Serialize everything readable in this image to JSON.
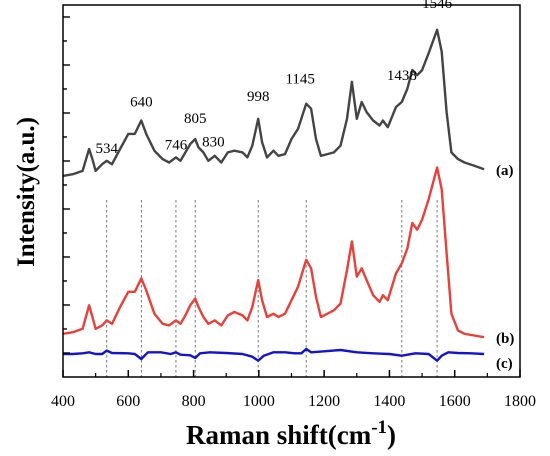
{
  "chart_data": {
    "type": "line",
    "xlabel": "Raman shift(cm",
    "xlabel_sup": "-1",
    "xlabel_close": ")",
    "ylabel": "Intensity(a.u.)",
    "xlim": [
      400,
      1800
    ],
    "x_ticks": [
      "400",
      "600",
      "800",
      "1000",
      "1200",
      "1400",
      "1600",
      "1800"
    ],
    "peak_labels": [
      "534",
      "640",
      "746",
      "805",
      "830",
      "998",
      "1145",
      "1438",
      "1546"
    ],
    "reference_lines": [
      534,
      640,
      746,
      805,
      998,
      1145,
      1438,
      1546
    ],
    "colors": {
      "a": "#444444",
      "b": "#e8403a",
      "c": "#1414c8",
      "ref": "#555555"
    },
    "series": [
      {
        "name": "(a)",
        "color": "#444444",
        "points": [
          [
            400,
            0.53
          ],
          [
            430,
            0.535
          ],
          [
            460,
            0.545
          ],
          [
            480,
            0.61
          ],
          [
            490,
            0.58
          ],
          [
            500,
            0.545
          ],
          [
            520,
            0.565
          ],
          [
            534,
            0.575
          ],
          [
            550,
            0.565
          ],
          [
            575,
            0.61
          ],
          [
            600,
            0.655
          ],
          [
            620,
            0.655
          ],
          [
            640,
            0.695
          ],
          [
            655,
            0.655
          ],
          [
            680,
            0.605
          ],
          [
            705,
            0.58
          ],
          [
            725,
            0.57
          ],
          [
            746,
            0.585
          ],
          [
            760,
            0.575
          ],
          [
            775,
            0.6
          ],
          [
            790,
            0.625
          ],
          [
            805,
            0.64
          ],
          [
            815,
            0.615
          ],
          [
            830,
            0.6
          ],
          [
            845,
            0.575
          ],
          [
            865,
            0.59
          ],
          [
            885,
            0.57
          ],
          [
            905,
            0.6
          ],
          [
            925,
            0.605
          ],
          [
            950,
            0.6
          ],
          [
            965,
            0.585
          ],
          [
            980,
            0.62
          ],
          [
            998,
            0.7
          ],
          [
            1010,
            0.63
          ],
          [
            1025,
            0.585
          ],
          [
            1045,
            0.605
          ],
          [
            1060,
            0.59
          ],
          [
            1080,
            0.595
          ],
          [
            1100,
            0.64
          ],
          [
            1120,
            0.67
          ],
          [
            1145,
            0.745
          ],
          [
            1160,
            0.73
          ],
          [
            1175,
            0.64
          ],
          [
            1190,
            0.59
          ],
          [
            1210,
            0.595
          ],
          [
            1230,
            0.6
          ],
          [
            1250,
            0.62
          ],
          [
            1270,
            0.7
          ],
          [
            1285,
            0.81
          ],
          [
            1300,
            0.7
          ],
          [
            1315,
            0.75
          ],
          [
            1330,
            0.72
          ],
          [
            1350,
            0.695
          ],
          [
            1370,
            0.68
          ],
          [
            1380,
            0.695
          ],
          [
            1395,
            0.675
          ],
          [
            1420,
            0.735
          ],
          [
            1438,
            0.75
          ],
          [
            1455,
            0.79
          ],
          [
            1470,
            0.845
          ],
          [
            1485,
            0.83
          ],
          [
            1500,
            0.845
          ],
          [
            1520,
            0.895
          ],
          [
            1546,
            0.965
          ],
          [
            1560,
            0.9
          ],
          [
            1575,
            0.72
          ],
          [
            1590,
            0.6
          ],
          [
            1610,
            0.58
          ],
          [
            1630,
            0.57
          ],
          [
            1660,
            0.56
          ],
          [
            1690,
            0.55
          ]
        ]
      },
      {
        "name": "(b)",
        "color": "#e8403a",
        "points": [
          [
            400,
            0.06
          ],
          [
            430,
            0.065
          ],
          [
            460,
            0.075
          ],
          [
            480,
            0.145
          ],
          [
            490,
            0.11
          ],
          [
            500,
            0.075
          ],
          [
            520,
            0.085
          ],
          [
            534,
            0.1
          ],
          [
            550,
            0.09
          ],
          [
            575,
            0.14
          ],
          [
            600,
            0.185
          ],
          [
            620,
            0.185
          ],
          [
            640,
            0.225
          ],
          [
            655,
            0.19
          ],
          [
            680,
            0.12
          ],
          [
            705,
            0.09
          ],
          [
            725,
            0.085
          ],
          [
            746,
            0.1
          ],
          [
            760,
            0.09
          ],
          [
            775,
            0.115
          ],
          [
            790,
            0.145
          ],
          [
            805,
            0.165
          ],
          [
            815,
            0.14
          ],
          [
            830,
            0.11
          ],
          [
            845,
            0.09
          ],
          [
            865,
            0.1
          ],
          [
            885,
            0.085
          ],
          [
            905,
            0.115
          ],
          [
            925,
            0.125
          ],
          [
            950,
            0.115
          ],
          [
            965,
            0.1
          ],
          [
            980,
            0.14
          ],
          [
            998,
            0.22
          ],
          [
            1010,
            0.16
          ],
          [
            1025,
            0.11
          ],
          [
            1045,
            0.12
          ],
          [
            1060,
            0.11
          ],
          [
            1080,
            0.12
          ],
          [
            1100,
            0.16
          ],
          [
            1120,
            0.2
          ],
          [
            1145,
            0.28
          ],
          [
            1160,
            0.255
          ],
          [
            1175,
            0.17
          ],
          [
            1190,
            0.11
          ],
          [
            1210,
            0.12
          ],
          [
            1230,
            0.13
          ],
          [
            1250,
            0.15
          ],
          [
            1270,
            0.25
          ],
          [
            1285,
            0.335
          ],
          [
            1300,
            0.23
          ],
          [
            1315,
            0.255
          ],
          [
            1330,
            0.22
          ],
          [
            1350,
            0.175
          ],
          [
            1370,
            0.155
          ],
          [
            1380,
            0.175
          ],
          [
            1395,
            0.16
          ],
          [
            1420,
            0.24
          ],
          [
            1438,
            0.27
          ],
          [
            1455,
            0.315
          ],
          [
            1470,
            0.39
          ],
          [
            1485,
            0.37
          ],
          [
            1500,
            0.4
          ],
          [
            1520,
            0.46
          ],
          [
            1546,
            0.555
          ],
          [
            1560,
            0.49
          ],
          [
            1575,
            0.3
          ],
          [
            1590,
            0.12
          ],
          [
            1610,
            0.07
          ],
          [
            1630,
            0.06
          ],
          [
            1660,
            0.055
          ],
          [
            1690,
            0.05
          ]
        ]
      },
      {
        "name": "(c)",
        "color": "#1414c8",
        "points": [
          [
            400,
            0.0
          ],
          [
            430,
            0.0
          ],
          [
            460,
            0.002
          ],
          [
            480,
            0.005
          ],
          [
            500,
            0.0
          ],
          [
            520,
            0.0
          ],
          [
            534,
            0.01
          ],
          [
            550,
            0.003
          ],
          [
            600,
            0.002
          ],
          [
            620,
            0.0
          ],
          [
            640,
            -0.015
          ],
          [
            660,
            0.005
          ],
          [
            700,
            0.005
          ],
          [
            730,
            0.0
          ],
          [
            746,
            0.005
          ],
          [
            760,
            -0.002
          ],
          [
            790,
            -0.004
          ],
          [
            805,
            -0.012
          ],
          [
            820,
            0.002
          ],
          [
            850,
            0.005
          ],
          [
            900,
            0.003
          ],
          [
            950,
            0.0
          ],
          [
            980,
            -0.008
          ],
          [
            998,
            -0.02
          ],
          [
            1015,
            -0.005
          ],
          [
            1045,
            0.005
          ],
          [
            1080,
            0.005
          ],
          [
            1110,
            0.002
          ],
          [
            1130,
            0.002
          ],
          [
            1145,
            0.015
          ],
          [
            1160,
            0.005
          ],
          [
            1200,
            0.008
          ],
          [
            1250,
            0.012
          ],
          [
            1300,
            0.005
          ],
          [
            1350,
            0.002
          ],
          [
            1400,
            0.0
          ],
          [
            1438,
            -0.005
          ],
          [
            1480,
            0.002
          ],
          [
            1520,
            0.0
          ],
          [
            1546,
            -0.02
          ],
          [
            1560,
            -0.005
          ],
          [
            1580,
            0.005
          ],
          [
            1610,
            0.003
          ],
          [
            1650,
            0.002
          ],
          [
            1690,
            0.0
          ]
        ]
      }
    ]
  }
}
